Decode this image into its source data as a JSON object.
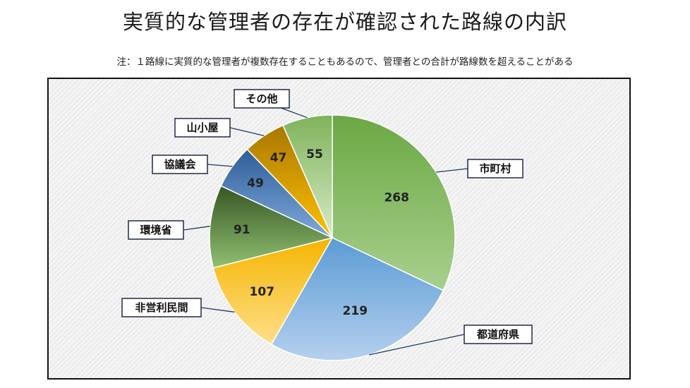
{
  "title": "実質的な管理者の存在が確認された路線の内訳",
  "note": "注：１路線に実質的な管理者が複数存在することもあるので、管理者との合計が路線数を超えることがある",
  "chart_data": {
    "type": "pie",
    "start": "12 o'clock",
    "direction": "clockwise",
    "legend": "none",
    "slices": [
      {
        "label": "市町村",
        "value": 268,
        "color_a": "#6aa843",
        "color_b": "#a9d08e"
      },
      {
        "label": "都道府県",
        "value": 219,
        "color_a": "#5b9bd5",
        "color_b": "#b4d0ee"
      },
      {
        "label": "非営利民間",
        "value": 107,
        "color_a": "#f4b400",
        "color_b": "#ffe08a"
      },
      {
        "label": "環境省",
        "value": 91,
        "color_a": "#375623",
        "color_b": "#8fc072"
      },
      {
        "label": "協議会",
        "value": 49,
        "color_a": "#2e5e9a",
        "color_b": "#7fa9d9"
      },
      {
        "label": "山小屋",
        "value": 47,
        "color_a": "#a87800",
        "color_b": "#ffc000"
      },
      {
        "label": "その他",
        "value": 55,
        "color_a": "#7fb25a",
        "color_b": "#d6ebc7"
      }
    ]
  }
}
